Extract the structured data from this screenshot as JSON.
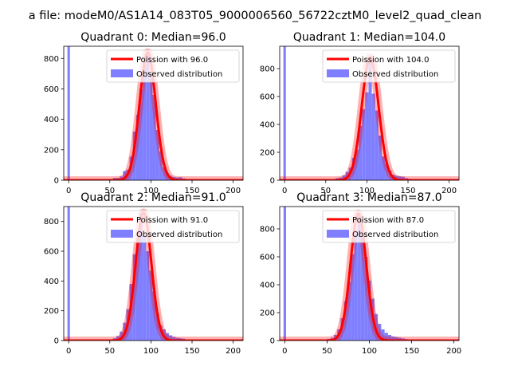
{
  "figure": {
    "suptitle": "a file: modeM0/AS1A14_083T05_9000006560_56722cztM0_level2_quad_clean"
  },
  "colors": {
    "bar": "#7f7fff",
    "poisson_line": "#ff0000",
    "poisson_shade": "#ff0000",
    "axis": "#000000",
    "background": "#ffffff"
  },
  "chart_data": [
    {
      "type": "bar",
      "title": "Quadrant 0: Median=96.0",
      "xlabel": "",
      "ylabel": "",
      "xlim": [
        -6,
        212
      ],
      "ylim": [
        0,
        880
      ],
      "xticks": [
        0,
        50,
        100,
        150,
        200
      ],
      "yticks": [
        0,
        200,
        400,
        600,
        800
      ],
      "legend_position": "upper-right",
      "legend": [
        "Poission with 96.0",
        "Observed distribution"
      ],
      "poisson_mean": 96.0,
      "poisson_peak": 840,
      "bin_width": 4,
      "spike": {
        "x": 0,
        "value": 880
      },
      "bins": {
        "x": [
          48,
          52,
          56,
          60,
          64,
          68,
          72,
          76,
          80,
          84,
          88,
          92,
          96,
          100,
          104,
          108,
          112,
          116,
          120,
          124,
          128,
          132,
          136,
          140,
          144,
          148,
          152,
          156,
          160
        ],
        "values": [
          3,
          8,
          15,
          15,
          25,
          60,
          70,
          155,
          320,
          430,
          600,
          760,
          840,
          700,
          560,
          330,
          190,
          85,
          45,
          30,
          22,
          18,
          20,
          12,
          8,
          6,
          4,
          3,
          2
        ]
      }
    },
    {
      "type": "bar",
      "title": "Quadrant 1: Median=104.0",
      "xlabel": "",
      "ylabel": "",
      "xlim": [
        -6,
        212
      ],
      "ylim": [
        0,
        960
      ],
      "xticks": [
        0,
        50,
        100,
        150,
        200
      ],
      "yticks": [
        0,
        200,
        400,
        600,
        800
      ],
      "legend_position": "upper-right",
      "legend": [
        "Poission with 104.0",
        "Observed distribution"
      ],
      "poisson_mean": 104.0,
      "poisson_peak": 880,
      "bin_width": 4,
      "spike": {
        "x": 0,
        "value": 960
      },
      "bins": {
        "x": [
          56,
          60,
          64,
          68,
          72,
          76,
          80,
          84,
          88,
          92,
          96,
          100,
          104,
          108,
          112,
          116,
          120,
          124,
          128,
          132,
          136,
          140,
          144,
          148,
          152,
          156,
          160,
          164
        ],
        "values": [
          3,
          8,
          15,
          20,
          35,
          60,
          90,
          160,
          220,
          390,
          510,
          630,
          880,
          620,
          500,
          320,
          170,
          120,
          70,
          40,
          32,
          28,
          25,
          15,
          10,
          6,
          4,
          2
        ]
      }
    },
    {
      "type": "bar",
      "title": "Quadrant 2: Median=91.0",
      "xlabel": "",
      "ylabel": "",
      "xlim": [
        -6,
        212
      ],
      "ylim": [
        0,
        900
      ],
      "xticks": [
        0,
        50,
        100,
        150,
        200
      ],
      "yticks": [
        0,
        200,
        400,
        600,
        800
      ],
      "legend_position": "upper-right",
      "legend": [
        "Poission with 91.0",
        "Observed distribution"
      ],
      "poisson_mean": 91.0,
      "poisson_peak": 860,
      "bin_width": 4,
      "spike": {
        "x": 0,
        "value": 900
      },
      "bins": {
        "x": [
          48,
          52,
          56,
          60,
          64,
          68,
          72,
          76,
          80,
          84,
          88,
          92,
          96,
          100,
          104,
          108,
          112,
          116,
          120,
          124,
          128,
          132,
          136,
          140,
          144,
          148,
          152,
          156,
          160
        ],
        "values": [
          3,
          8,
          15,
          30,
          60,
          120,
          210,
          380,
          580,
          690,
          860,
          700,
          600,
          470,
          330,
          180,
          100,
          75,
          50,
          35,
          25,
          18,
          15,
          12,
          8,
          6,
          4,
          3,
          2
        ]
      }
    },
    {
      "type": "bar",
      "title": "Quadrant 3: Median=87.0",
      "xlabel": "",
      "ylabel": "",
      "xlim": [
        -6,
        206
      ],
      "ylim": [
        0,
        960
      ],
      "xticks": [
        0,
        50,
        100,
        150,
        200
      ],
      "yticks": [
        0,
        200,
        400,
        600,
        800
      ],
      "legend_position": "upper-right",
      "legend": [
        "Poission with 87.0",
        "Observed distribution"
      ],
      "poisson_mean": 87.0,
      "poisson_peak": 910,
      "bin_width": 4,
      "spike": {
        "x": 0,
        "value": 960
      },
      "bins": {
        "x": [
          44,
          48,
          52,
          56,
          60,
          64,
          68,
          72,
          76,
          80,
          84,
          88,
          92,
          96,
          100,
          104,
          108,
          112,
          116,
          120,
          124,
          128,
          132,
          136,
          140,
          144,
          148,
          152,
          156
        ],
        "values": [
          3,
          6,
          12,
          20,
          40,
          80,
          160,
          280,
          420,
          620,
          790,
          900,
          780,
          600,
          430,
          300,
          190,
          120,
          80,
          55,
          40,
          30,
          25,
          20,
          15,
          10,
          6,
          4,
          2
        ]
      }
    }
  ]
}
